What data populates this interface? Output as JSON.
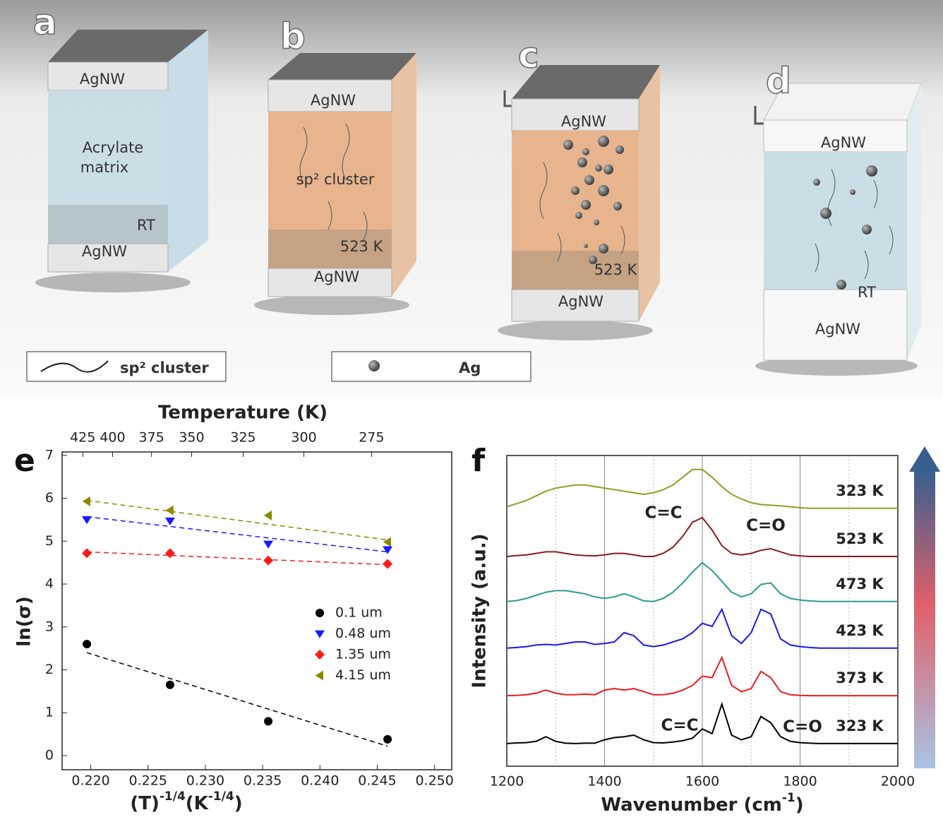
{
  "illustration": {
    "panels": [
      {
        "label": "a",
        "top": "AgNW",
        "bottom": "AgNW",
        "body": [
          "Acrylate",
          "matrix"
        ],
        "temp": "RT"
      },
      {
        "label": "b",
        "top": "AgNW",
        "bottom": "AgNW",
        "body": [
          "sp² cluster"
        ],
        "temp": "523 K"
      },
      {
        "label": "c",
        "top": "AgNW",
        "bottom": "AgNW",
        "temp": "523 K"
      },
      {
        "label": "d",
        "top": "AgNW",
        "bottom": "AgNW",
        "temp": "RT"
      }
    ],
    "legend": [
      "sp² cluster",
      "Ag"
    ]
  },
  "chart_data": [
    {
      "type": "scatter",
      "panel_label": "e",
      "x2label": "Temperature (K)",
      "xlabel_parts": [
        "(T)",
        "-1/4",
        "(K",
        "-1/4",
        ")"
      ],
      "ylabel": "ln(σ)",
      "x": [
        0.21966,
        0.22692,
        0.23549,
        0.2459
      ],
      "fit_x": [
        0.21966,
        0.2459
      ],
      "series": [
        {
          "name": "0.1 um",
          "color": "#000000",
          "marker": "circle",
          "values": [
            2.6,
            1.65,
            0.8,
            0.38
          ],
          "fit": [
            2.4,
            0.22
          ]
        },
        {
          "name": "0.48 um",
          "color": "#1a1aff",
          "marker": "triangle-down",
          "values": [
            5.5,
            5.47,
            4.93,
            4.8
          ],
          "fit": [
            5.57,
            4.75
          ]
        },
        {
          "name": "1.35 um",
          "color": "#ff1a1a",
          "marker": "diamond",
          "values": [
            4.72,
            4.72,
            4.55,
            4.47
          ],
          "fit": [
            4.75,
            4.45
          ]
        },
        {
          "name": "4.15 um",
          "color": "#8a8a00",
          "marker": "triangle-left",
          "values": [
            5.93,
            5.72,
            5.6,
            4.98
          ],
          "fit": [
            5.95,
            5.03
          ]
        }
      ],
      "xlim": [
        0.2175,
        0.2515
      ],
      "ylim": [
        -0.33,
        7.08
      ],
      "xticks": [
        {
          "value": 0.22,
          "label": "0.220"
        },
        0.225,
        {
          "value": 0.23,
          "label": "0.230"
        },
        0.235,
        {
          "value": 0.24,
          "label": "0.240"
        },
        0.245,
        {
          "value": 0.25,
          "label": "0.250"
        }
      ],
      "x2ticks": [
        {
          "value": 0.2193,
          "label": "425"
        },
        {
          "value": 0.2219,
          "label": "400"
        },
        {
          "value": 0.2253,
          "label": "375"
        },
        {
          "value": 0.2288,
          "label": "350"
        },
        {
          "value": 0.2333,
          "label": "325"
        },
        {
          "value": 0.2386,
          "label": "300"
        },
        {
          "value": 0.2445,
          "label": "275"
        }
      ],
      "yticks": [
        0,
        1,
        2,
        3,
        4,
        5,
        6,
        7
      ]
    },
    {
      "type": "line",
      "panel_label": "f",
      "xlabel_parts": [
        "Wavenumber (cm",
        "-1",
        ")"
      ],
      "ylabel": "Intensity (a.u.)",
      "x": [
        1200,
        1220,
        1240,
        1260,
        1280,
        1300,
        1320,
        1340,
        1360,
        1380,
        1400,
        1420,
        1440,
        1460,
        1480,
        1500,
        1520,
        1540,
        1560,
        1580,
        1600,
        1620,
        1640,
        1660,
        1680,
        1700,
        1720,
        1740,
        1760,
        1780,
        1800,
        1820,
        1840,
        1860,
        1880,
        1900,
        1920,
        1940,
        1960,
        1980,
        2000
      ],
      "series": [
        {
          "name": "323 K",
          "color": "#000000",
          "label_color": "#111111",
          "values": [
            0.73,
            0.75,
            0.76,
            0.8,
            0.95,
            0.8,
            0.74,
            0.73,
            0.74,
            0.74,
            0.85,
            0.92,
            0.95,
            1.0,
            0.85,
            0.76,
            0.75,
            0.78,
            0.82,
            0.9,
            1.2,
            1.05,
            2.0,
            1.0,
            0.85,
            0.95,
            1.6,
            1.4,
            0.95,
            0.8,
            0.76,
            0.74,
            0.73,
            0.73,
            0.73,
            0.73,
            0.73,
            0.73,
            0.73,
            0.73,
            0.73
          ]
        },
        {
          "name": "373 K",
          "color": "#ee1c1c",
          "label_color": "#ee1c1c",
          "values": [
            2.27,
            2.28,
            2.3,
            2.35,
            2.45,
            2.35,
            2.3,
            2.3,
            2.32,
            2.3,
            2.45,
            2.5,
            2.45,
            2.5,
            2.4,
            2.3,
            2.3,
            2.35,
            2.45,
            2.6,
            2.9,
            2.85,
            3.5,
            2.6,
            2.4,
            2.5,
            3.05,
            2.85,
            2.4,
            2.3,
            2.28,
            2.27,
            2.27,
            2.27,
            2.27,
            2.27,
            2.27,
            2.27,
            2.27,
            2.27,
            2.27
          ]
        },
        {
          "name": "423 K",
          "color": "#1a1aee",
          "label_color": "#1a1aee",
          "values": [
            3.8,
            3.82,
            3.85,
            3.9,
            3.92,
            3.9,
            3.95,
            4.0,
            4.0,
            3.92,
            3.95,
            4.0,
            4.3,
            4.2,
            3.9,
            3.85,
            3.9,
            4.0,
            4.1,
            4.3,
            4.6,
            4.5,
            5.05,
            4.2,
            3.95,
            4.3,
            5.05,
            4.9,
            4.1,
            3.9,
            3.85,
            3.82,
            3.8,
            3.8,
            3.8,
            3.8,
            3.8,
            3.8,
            3.8,
            3.8,
            3.8
          ]
        },
        {
          "name": "473 K",
          "color": "#2a9a96",
          "label_color": "#2a9a96",
          "values": [
            5.3,
            5.33,
            5.4,
            5.5,
            5.6,
            5.65,
            5.65,
            5.6,
            5.55,
            5.45,
            5.4,
            5.45,
            5.55,
            5.45,
            5.32,
            5.3,
            5.4,
            5.6,
            5.9,
            6.25,
            6.55,
            6.3,
            5.95,
            5.6,
            5.45,
            5.55,
            5.85,
            5.9,
            5.55,
            5.4,
            5.35,
            5.32,
            5.3,
            5.3,
            5.3,
            5.3,
            5.3,
            5.3,
            5.3,
            5.3,
            5.3
          ]
        },
        {
          "name": "523 K",
          "color": "#8b1a1a",
          "label_color": "#8b1a8b",
          "values": [
            6.75,
            6.78,
            6.8,
            6.85,
            6.9,
            6.9,
            6.85,
            6.8,
            6.78,
            6.77,
            6.8,
            6.85,
            6.85,
            6.8,
            6.75,
            6.75,
            6.85,
            7.05,
            7.4,
            7.85,
            8.0,
            7.6,
            7.1,
            6.85,
            6.8,
            6.85,
            6.95,
            7.0,
            6.9,
            6.8,
            6.77,
            6.75,
            6.75,
            6.75,
            6.75,
            6.75,
            6.75,
            6.75,
            6.75,
            6.75,
            6.75
          ]
        },
        {
          "name": "323 K",
          "color": "#9a9a22",
          "label_color": "#8a8a20",
          "values": [
            8.35,
            8.45,
            8.55,
            8.7,
            8.85,
            8.95,
            9.0,
            9.05,
            9.05,
            9.0,
            8.95,
            8.9,
            8.85,
            8.8,
            8.75,
            8.8,
            8.9,
            9.05,
            9.3,
            9.55,
            9.55,
            9.3,
            9.0,
            8.75,
            8.6,
            8.48,
            8.42,
            8.4,
            8.38,
            8.35,
            8.32,
            8.3,
            8.3,
            8.3,
            8.3,
            8.3,
            8.3,
            8.3,
            8.3,
            8.3,
            8.3
          ]
        }
      ],
      "annotations": [
        {
          "text": "C=C",
          "color": "#3a7a1a"
        },
        {
          "text": "C=O",
          "color": "#3a7a1a"
        },
        {
          "text": "C=C",
          "color": "#111111"
        },
        {
          "text": "C=O",
          "color": "#111111"
        }
      ],
      "xlim": [
        1200,
        2000
      ],
      "ylim": [
        0,
        10
      ],
      "xticks": [
        1200,
        1400,
        1600,
        1800,
        2000
      ],
      "minor_xticks": [
        1300,
        1500,
        1700,
        1900
      ]
    }
  ]
}
